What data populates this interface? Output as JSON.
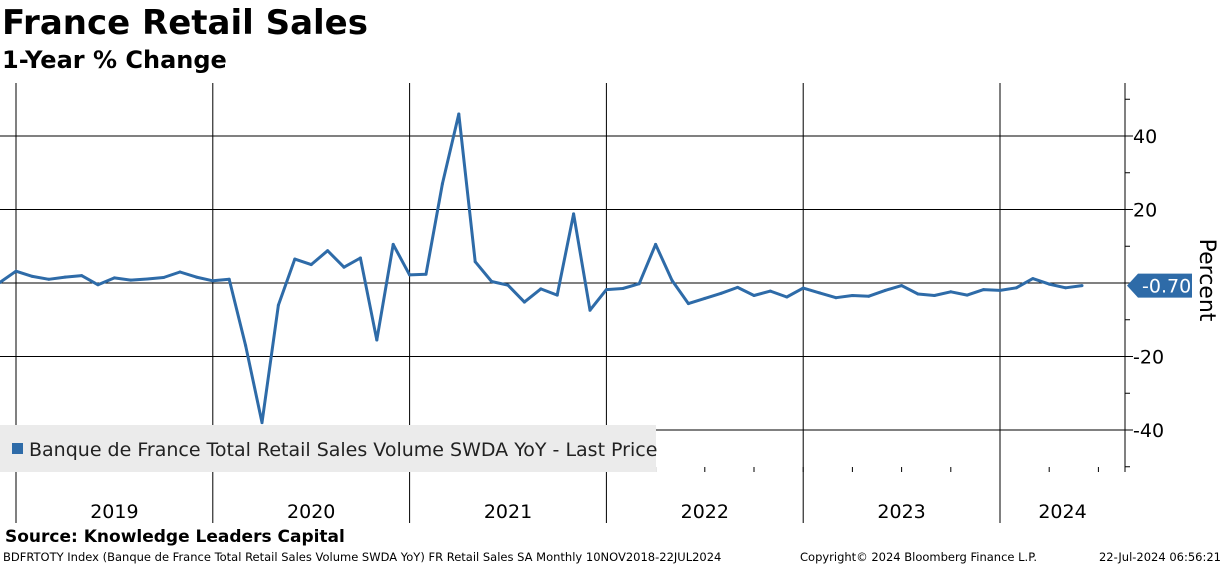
{
  "header": {
    "title": "France Retail Sales",
    "subtitle": "1-Year % Change"
  },
  "source": "Source: Knowledge Leaders Capital",
  "footer": {
    "description": "BDFRTOTY Index (Banque de France Total Retail Sales Volume SWDA YoY) FR Retail Sales SA  Monthly 10NOV2018-22JUL2024",
    "copyright": "Copyright© 2024 Bloomberg Finance L.P.",
    "timestamp": "22-Jul-2024 06:56:21"
  },
  "colors": {
    "series": "#2e6ba8",
    "badge": "#2e6ba8",
    "legend_bg": "#ebebeb",
    "grid": "#000000"
  },
  "chart_data": {
    "type": "line",
    "title": "France Retail Sales",
    "subtitle": "1-Year % Change",
    "ylabel": "Percent",
    "ylim": [
      -51,
      54
    ],
    "yticks": [
      -40,
      -20,
      0,
      20,
      40
    ],
    "ytick_labels": [
      "-40",
      "-20",
      "0",
      "20",
      "40"
    ],
    "y_axis_position": "right",
    "years": [
      "2019",
      "2020",
      "2021",
      "2022",
      "2023",
      "2024"
    ],
    "grid": true,
    "legend": {
      "position": "bottom-left",
      "label": "Banque de France Total Retail Sales Volume SWDA YoY - Last Price"
    },
    "last_value": -0.7,
    "last_value_label": "-0.70",
    "series": [
      {
        "name": "Banque de France Total Retail Sales Volume SWDA YoY - Last Price",
        "start": "2018-11",
        "values": [
          0.4,
          0.1,
          3.2,
          1.8,
          1.0,
          1.6,
          2.0,
          -0.5,
          1.4,
          0.8,
          1.1,
          1.5,
          3.0,
          1.6,
          0.6,
          1.0,
          -17.0,
          -38.0,
          -6.0,
          6.5,
          5.0,
          8.8,
          4.3,
          6.8,
          -15.5,
          10.5,
          2.2,
          2.4,
          27.0,
          46.0,
          5.8,
          0.4,
          -0.6,
          -5.2,
          -1.6,
          -3.3,
          18.8,
          -7.4,
          -1.8,
          -1.5,
          -0.2,
          10.5,
          0.7,
          -5.6,
          -4.2,
          -2.8,
          -1.2,
          -3.4,
          -2.2,
          -3.8,
          -1.4,
          -2.7,
          -4.0,
          -3.4,
          -3.6,
          -2.0,
          -0.7,
          -3.0,
          -3.4,
          -2.4,
          -3.3,
          -1.8,
          -2.0,
          -1.3,
          1.2,
          -0.3,
          -1.3,
          -0.7
        ]
      }
    ]
  }
}
